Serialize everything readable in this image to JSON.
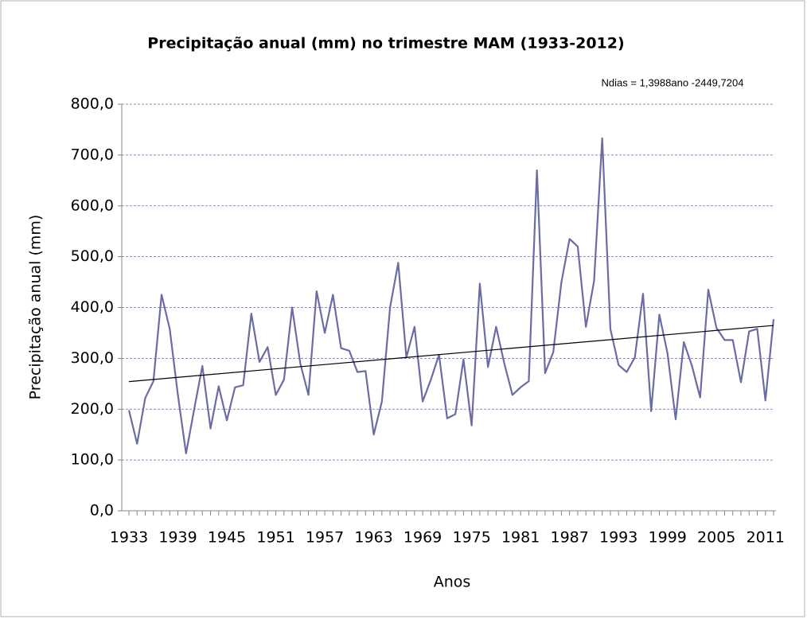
{
  "chart_data": {
    "type": "line",
    "title": "Precipitação anual (mm) no trimestre MAM (1933-2012)",
    "annotation": "Ndias = 1,3988ano  -2449,7204",
    "x_label": "Anos",
    "y_label": "Precipitação anual (mm)",
    "categories": [
      "1933",
      null,
      null,
      null,
      null,
      null,
      "1939",
      null,
      null,
      null,
      null,
      null,
      "1945",
      null,
      null,
      null,
      null,
      null,
      "1951",
      null,
      null,
      null,
      null,
      null,
      "1957",
      null,
      null,
      null,
      null,
      null,
      "1963",
      null,
      null,
      null,
      null,
      null,
      "1969",
      null,
      null,
      null,
      null,
      null,
      "1975",
      null,
      null,
      null,
      null,
      null,
      "1981",
      null,
      null,
      null,
      null,
      null,
      "1987",
      null,
      null,
      null,
      null,
      null,
      "1993",
      null,
      null,
      null,
      null,
      null,
      "1999",
      null,
      null,
      null,
      null,
      null,
      "2005",
      null,
      null,
      null,
      null,
      null,
      "2011",
      null
    ],
    "series": [
      {
        "color": "#6b6ca3",
        "values": [
          198,
          132,
          222,
          255,
          425,
          358,
          228,
          113,
          200,
          285,
          162,
          245,
          178,
          243,
          247,
          388,
          293,
          322,
          228,
          258,
          400,
          290,
          228,
          432,
          350,
          425,
          320,
          315,
          273,
          275,
          150,
          215,
          400,
          488,
          302,
          362,
          215,
          258,
          307,
          182,
          190,
          298,
          168,
          447,
          283,
          362,
          290,
          228,
          243,
          255,
          670,
          271,
          312,
          450,
          535,
          520,
          362,
          452,
          733,
          358,
          287,
          273,
          302,
          427,
          196,
          386,
          310,
          180,
          332,
          285,
          223,
          435,
          360,
          336,
          336,
          253,
          353,
          358,
          217,
          377
        ]
      }
    ],
    "trendline": {
      "color": "#000000",
      "values": [
        254.2,
        364.7
      ]
    },
    "ylim": [
      0,
      800
    ],
    "yticks": [
      {
        "value": 0,
        "label": "0,0"
      },
      {
        "value": 100,
        "label": "100,0"
      },
      {
        "value": 200,
        "label": "200,0"
      },
      {
        "value": 300,
        "label": "300,0"
      },
      {
        "value": 400,
        "label": "400,0"
      },
      {
        "value": 500,
        "label": "500,0"
      },
      {
        "value": 600,
        "label": "600,0"
      },
      {
        "value": 700,
        "label": "700,0"
      },
      {
        "value": 800,
        "label": "800,0"
      }
    ],
    "grid": true
  }
}
